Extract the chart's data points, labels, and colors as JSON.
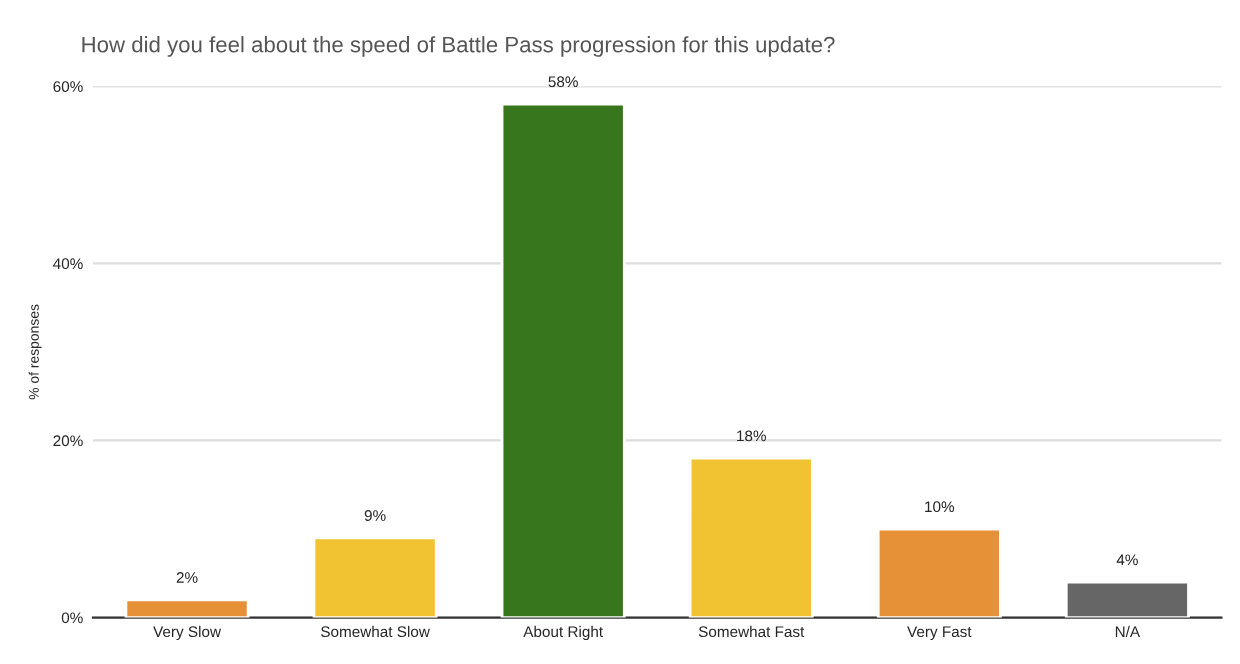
{
  "chart_data": {
    "type": "bar",
    "title": "How did you feel about the speed of Battle Pass progression for this update?",
    "ylabel": "% of responses",
    "categories": [
      "Very Slow",
      "Somewhat Slow",
      "About Right",
      "Somewhat Fast",
      "Very Fast",
      "N/A"
    ],
    "values": [
      2,
      9,
      58,
      18,
      10,
      4
    ],
    "colors": [
      "#e69138",
      "#f1c232",
      "#38761d",
      "#f1c232",
      "#e69138",
      "#666666"
    ],
    "value_labels": [
      "2%",
      "9%",
      "58%",
      "18%",
      "10%",
      "4%"
    ],
    "ylim": [
      0,
      60
    ],
    "yticks": [
      {
        "value": 0,
        "label": "0%"
      },
      {
        "value": 20,
        "label": "20%"
      },
      {
        "value": 40,
        "label": "40%"
      },
      {
        "value": 60,
        "label": "60%"
      }
    ],
    "grid": "y",
    "legend": false
  }
}
